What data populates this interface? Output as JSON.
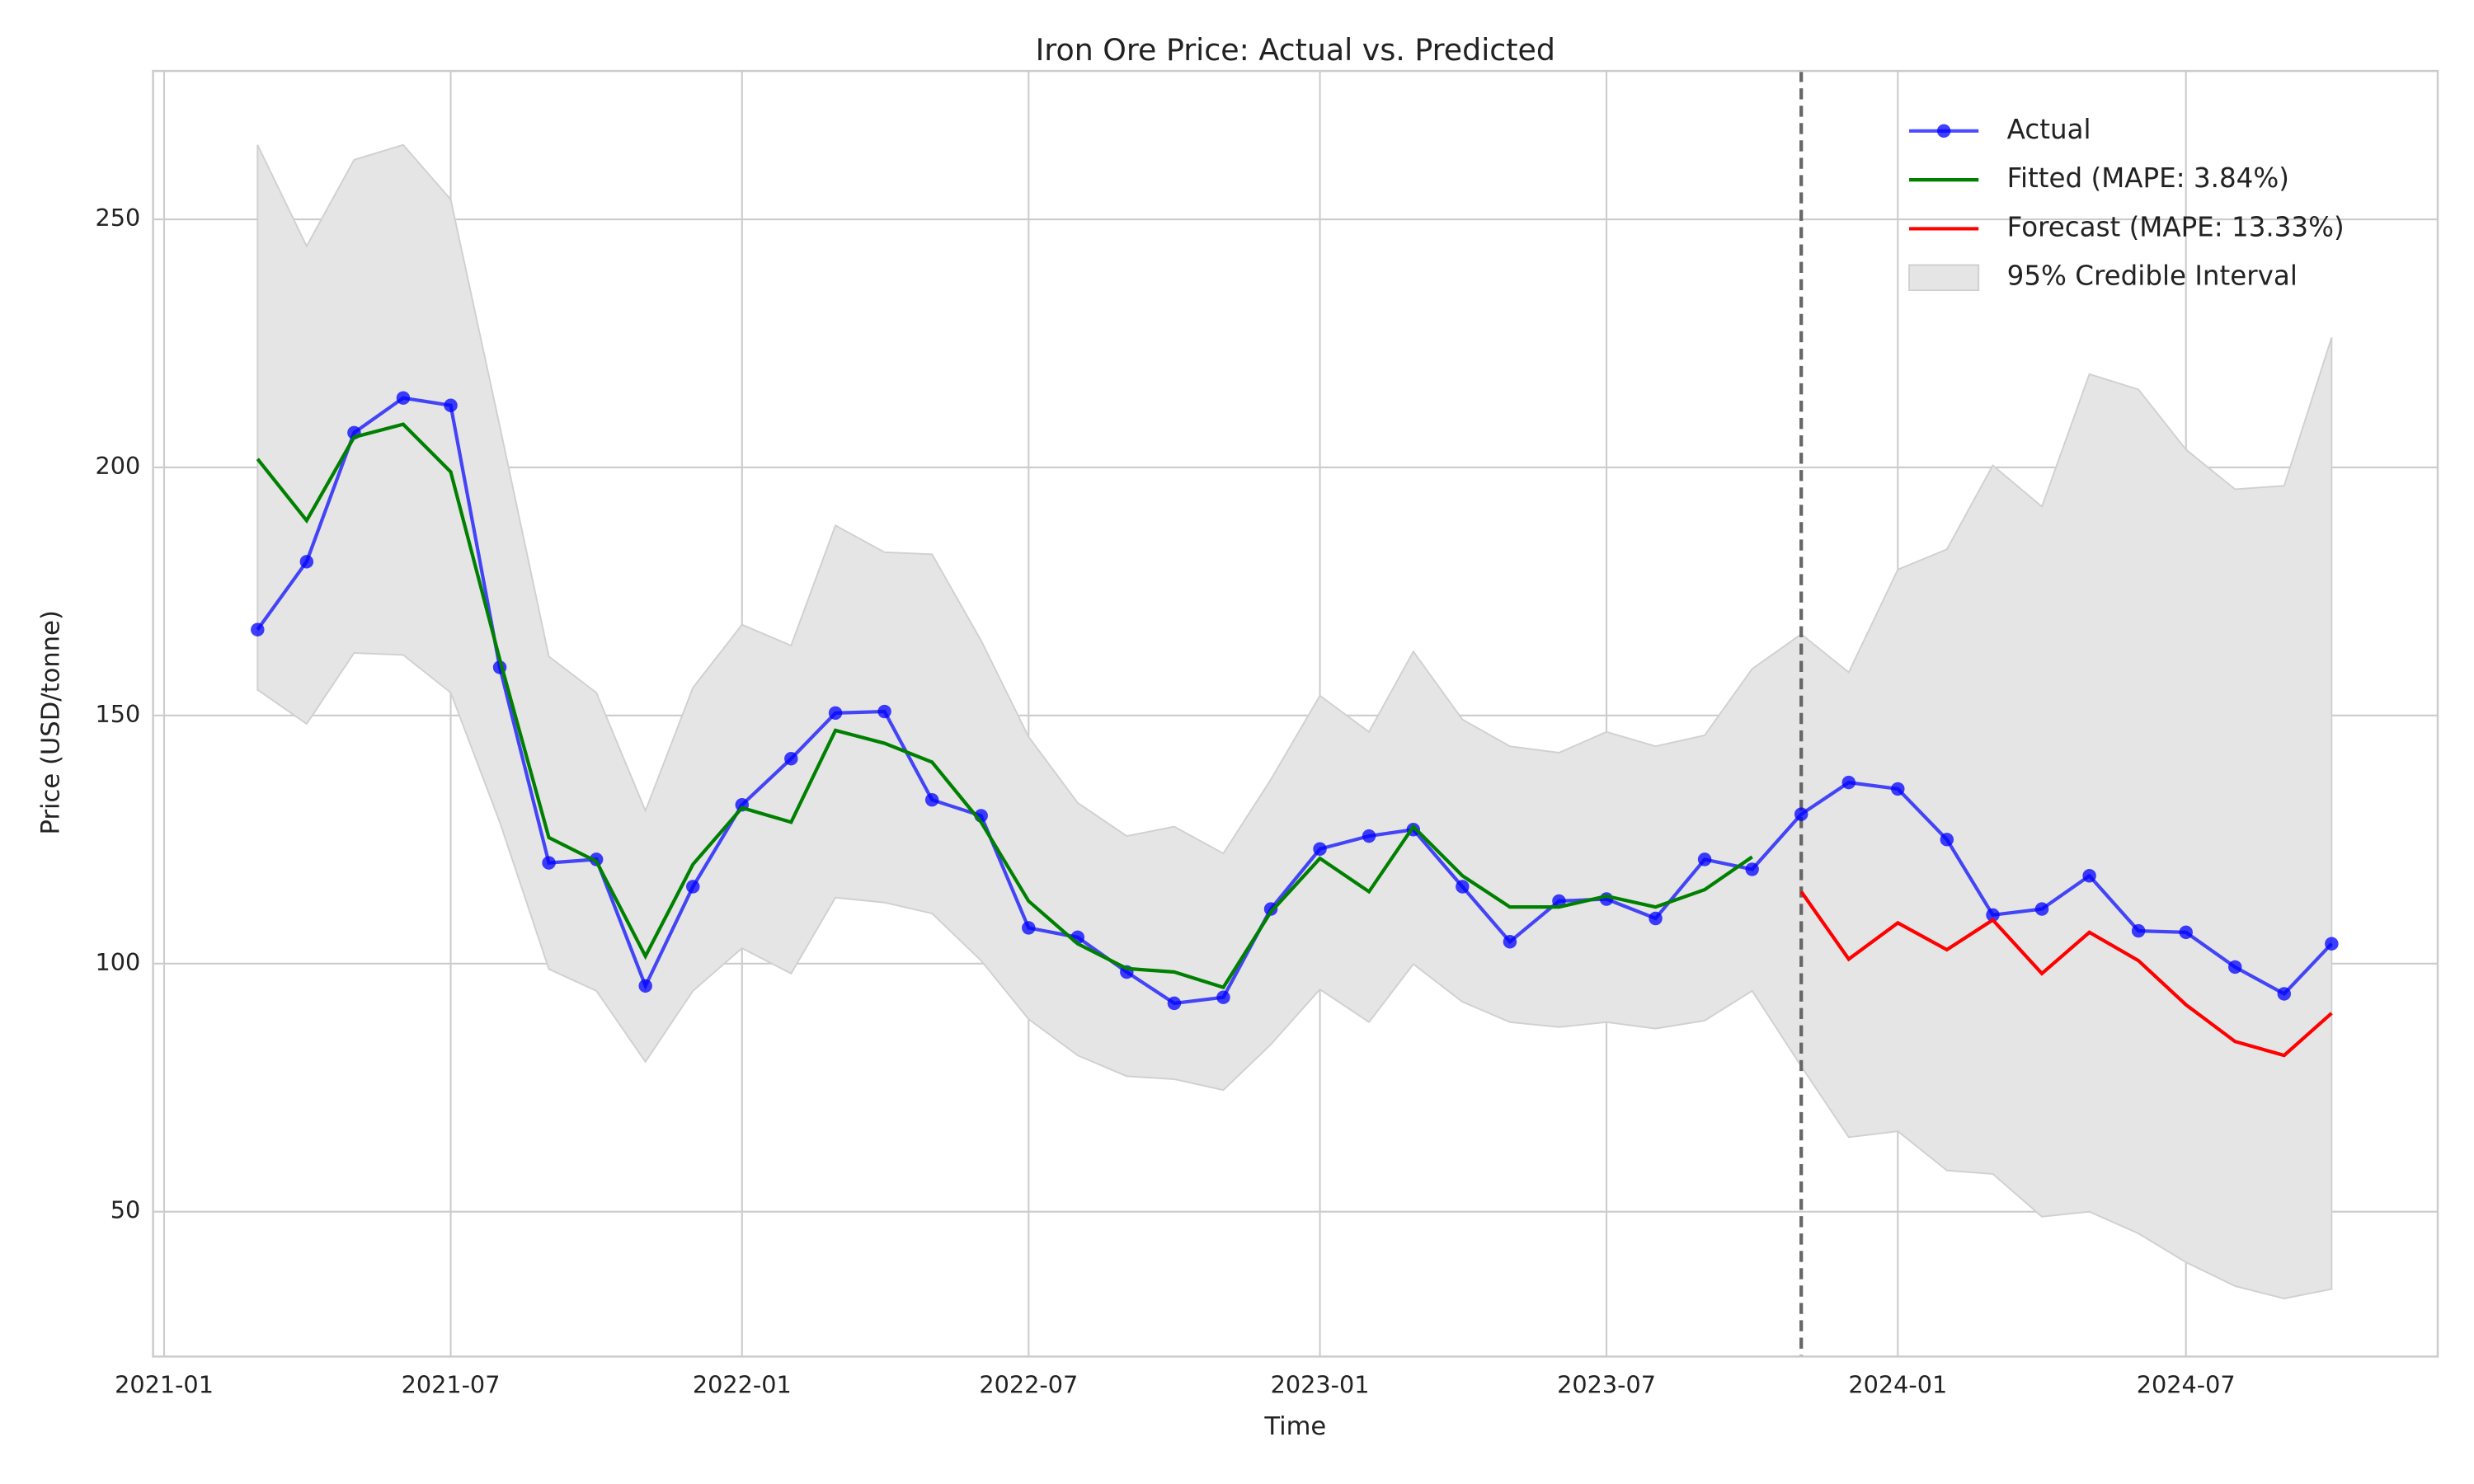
{
  "chart_data": {
    "type": "line",
    "title": "Iron Ore Price: Actual vs. Predicted",
    "xlabel": "Time",
    "ylabel": "Price (USD/tonne)",
    "x": [
      "2021-03",
      "2021-04",
      "2021-05",
      "2021-06",
      "2021-07",
      "2021-08",
      "2021-09",
      "2021-10",
      "2021-11",
      "2021-12",
      "2022-01",
      "2022-02",
      "2022-03",
      "2022-04",
      "2022-05",
      "2022-06",
      "2022-07",
      "2022-08",
      "2022-09",
      "2022-10",
      "2022-11",
      "2022-12",
      "2023-01",
      "2023-02",
      "2023-03",
      "2023-04",
      "2023-05",
      "2023-06",
      "2023-07",
      "2023-08",
      "2023-09",
      "2023-10",
      "2023-11",
      "2023-12",
      "2024-01",
      "2024-02",
      "2024-03",
      "2024-04",
      "2024-05",
      "2024-06",
      "2024-07",
      "2024-08",
      "2024-09",
      "2024-10"
    ],
    "series": [
      {
        "name": "Actual",
        "color": "#0000ff",
        "marker": true,
        "values": [
          167.3,
          181,
          207,
          214,
          212.5,
          159.7,
          120.3,
          121,
          95.5,
          115.5,
          132,
          141.3,
          150.5,
          150.8,
          133,
          129.8,
          107.2,
          105.3,
          98.3,
          92,
          93.2,
          111,
          123.1,
          125.7,
          127,
          115.5,
          104.4,
          112.6,
          113,
          109.1,
          121,
          119,
          130.1,
          136.5,
          135.2,
          125,
          109.8,
          111,
          117.7,
          106.6,
          106.3,
          99.3,
          93.9,
          104
        ]
      },
      {
        "name": "Fitted (MAPE: 3.84%)",
        "color": "#008000",
        "marker": false,
        "values": [
          201.7,
          189.3,
          206.1,
          208.7,
          199.1,
          161.3,
          125.4,
          120.6,
          101.5,
          120,
          131.4,
          128.5,
          147,
          144.4,
          140.6,
          128.5,
          112.6,
          104,
          99,
          98.3,
          95.2,
          110.4,
          121.2,
          114.5,
          127.6,
          117.7,
          111.4,
          111.4,
          113.6,
          111.4,
          114.9,
          121.5,
          null,
          null,
          null,
          null,
          null,
          null,
          null,
          null,
          null,
          null,
          null,
          null
        ]
      },
      {
        "name": "Forecast (MAPE: 13.33%)",
        "color": "#ff0000",
        "marker": false,
        "values": [
          null,
          null,
          null,
          null,
          null,
          null,
          null,
          null,
          null,
          null,
          null,
          null,
          null,
          null,
          null,
          null,
          null,
          null,
          null,
          null,
          null,
          null,
          null,
          null,
          null,
          null,
          null,
          null,
          null,
          null,
          null,
          null,
          114.5,
          100.9,
          108.2,
          102.8,
          108.8,
          98,
          106.3,
          100.6,
          91.7,
          84.3,
          81.5,
          90
        ]
      }
    ],
    "interval": {
      "name": "95% Credible Interval",
      "color": "#e5e5e5",
      "upper": [
        265,
        244.6,
        262,
        265,
        254,
        208.3,
        161.9,
        154.6,
        130.8,
        155.6,
        168.3,
        164.1,
        188.3,
        182.9,
        182.5,
        165.1,
        145.7,
        132.4,
        125.7,
        127.6,
        122.2,
        137.1,
        154,
        146.7,
        162.9,
        149.2,
        143.8,
        142.5,
        146.7,
        143.8,
        146,
        159.4,
        166.4,
        158.7,
        179.4,
        183.5,
        200.4,
        192.1,
        218.8,
        215.7,
        203.6,
        195.6,
        196.3,
        226.2
      ],
      "lower": [
        155.2,
        148.3,
        162.6,
        162.2,
        154.6,
        128.5,
        98.9,
        94.5,
        80.2,
        94.5,
        103.1,
        98,
        113.3,
        112.3,
        110.1,
        100.6,
        88.8,
        81.5,
        77.3,
        76.7,
        74.5,
        83.7,
        94.8,
        88.2,
        99.9,
        92.3,
        88.2,
        87.2,
        88.2,
        86.9,
        88.5,
        94.5,
        79.3,
        65,
        66.2,
        58.3,
        57.6,
        49,
        50,
        45.6,
        39.8,
        35,
        32.5,
        34.4
      ]
    },
    "vline": "2023-11",
    "xlim": [
      "2020-12-25",
      "2024-12-07"
    ],
    "xticks": [
      "2021-01",
      "2021-07",
      "2022-01",
      "2022-07",
      "2023-01",
      "2023-07",
      "2024-01",
      "2024-07"
    ],
    "ylim": [
      20.8,
      279.9
    ],
    "yticks": [
      50,
      100,
      150,
      200,
      250
    ],
    "grid": true,
    "legend": "upper right"
  }
}
